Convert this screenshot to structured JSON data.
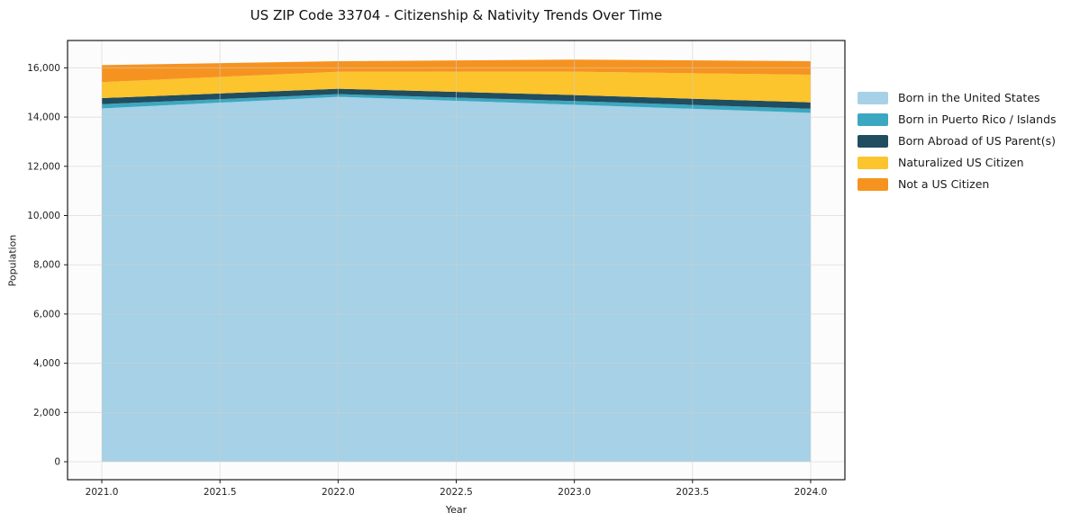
{
  "title": "US ZIP Code 33704 - Citizenship & Nativity Trends Over Time",
  "chart_data": {
    "type": "area",
    "stacked": true,
    "title": "US ZIP Code 33704 - Citizenship & Nativity Trends Over Time",
    "xlabel": "Year",
    "ylabel": "Population",
    "x": [
      2021,
      2022,
      2023,
      2024
    ],
    "series": [
      {
        "name": "Born in the United States",
        "color": "#A6D1E6",
        "values": [
          14350,
          14820,
          14500,
          14170
        ]
      },
      {
        "name": "Born in Puerto Rico / Islands",
        "color": "#3CA7C0",
        "values": [
          175,
          110,
          150,
          170
        ]
      },
      {
        "name": "Born Abroad of US Parent(s)",
        "color": "#204D5F",
        "values": [
          245,
          220,
          245,
          260
        ]
      },
      {
        "name": "Naturalized US Citizen",
        "color": "#FCC42D",
        "values": [
          650,
          690,
          950,
          1120
        ]
      },
      {
        "name": "Not a US Citizen",
        "color": "#F69320",
        "values": [
          690,
          430,
          490,
          550
        ]
      }
    ],
    "stack_totals": [
      16110,
      16270,
      16335,
      16270
    ],
    "xlim": [
      2020.855,
      2024.145
    ],
    "ylim": [
      -730,
      17110
    ],
    "xticks": {
      "values": [
        2021.0,
        2021.5,
        2022.0,
        2022.5,
        2023.0,
        2023.5,
        2024.0
      ],
      "labels": [
        "2021.0",
        "2021.5",
        "2022.0",
        "2022.5",
        "2023.0",
        "2023.5",
        "2024.0"
      ]
    },
    "yticks": {
      "values": [
        0,
        2000,
        4000,
        6000,
        8000,
        10000,
        12000,
        14000,
        16000
      ],
      "labels": [
        "0",
        "2,000",
        "4,000",
        "6,000",
        "8,000",
        "10,000",
        "12,000",
        "14,000",
        "16,000"
      ]
    },
    "grid": true,
    "legend_position": "right"
  },
  "style": {
    "plot_bg": "#fcfcfc",
    "grid_color": "#d0d0d0",
    "grid_opacity": 0.55,
    "spine_color": "#1a1a1a",
    "tick_color": "#1a1a1a",
    "tick_label_color": "#1f1f1f"
  }
}
